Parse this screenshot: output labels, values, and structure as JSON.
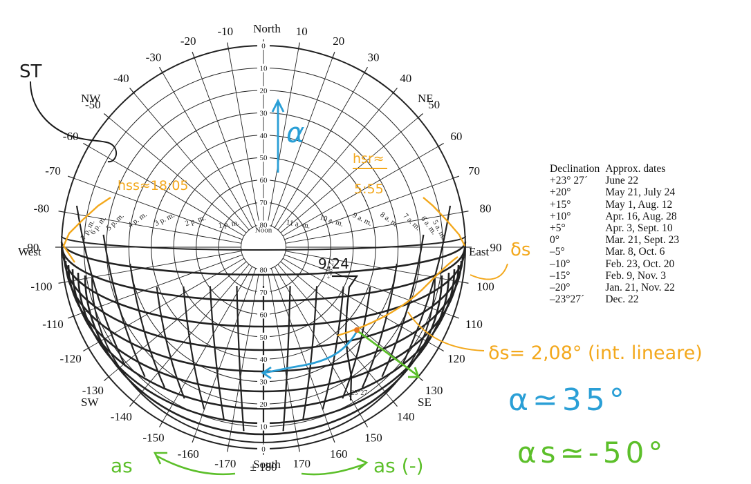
{
  "compass": {
    "north": "North",
    "south": "South",
    "east": "East",
    "west": "West",
    "ne": "NE",
    "nw": "NW",
    "se": "SE",
    "sw": "SW"
  },
  "azimuth_labels": [
    "170",
    "± 180",
    "-170",
    "160",
    "-160",
    "150",
    "-150",
    "140",
    "-140",
    "130",
    "-130",
    "120",
    "-120",
    "110",
    "-110",
    "100",
    "-100",
    "90",
    "-90",
    "80",
    "-80",
    "70",
    "-70",
    "60",
    "-60",
    "50",
    "-50",
    "40",
    "-40",
    "30",
    "-30",
    "20",
    "-20",
    "10",
    "-10"
  ],
  "altitude_labels_north": [
    "0",
    "10",
    "20",
    "30",
    "40",
    "50",
    "60",
    "70",
    "80"
  ],
  "altitude_labels_south": [
    "80",
    "70",
    "60",
    "50",
    "40",
    "30",
    "20",
    "10",
    "0"
  ],
  "hour_labels": [
    "7 p. m.",
    "6 p. m.",
    "5 p. m.",
    "4 p. m.",
    "3 p. m.",
    "2 p. m.",
    "1 p. m.",
    "Noon",
    "11 a. m.",
    "10 a. m.",
    "9 a. m.",
    "8 a. m.",
    "7 a. m.",
    "6 a. m.",
    "5 a. m."
  ],
  "declination_table": {
    "headers": [
      "Declination",
      "Approx. dates"
    ],
    "rows": [
      [
        "+23° 27´",
        "June 22"
      ],
      [
        "+20°",
        "May 21, July 24"
      ],
      [
        "+15°",
        "May 1, Aug. 12"
      ],
      [
        "+10°",
        "Apr. 16, Aug. 28"
      ],
      [
        "+5°",
        "Apr. 3, Sept. 10"
      ],
      [
        "0°",
        "Mar. 21, Sept. 23"
      ],
      [
        "–5°",
        "Mar. 8, Oct. 6"
      ],
      [
        "–10°",
        "Feb. 23, Oct. 20"
      ],
      [
        "–15°",
        "Feb. 9, Nov. 3"
      ],
      [
        "–20°",
        "Jan. 21, Nov. 22"
      ],
      [
        "–23°27´",
        "Dec. 22"
      ]
    ]
  },
  "curve_labels": [
    "+23°27",
    "-23°27"
  ],
  "annotations": {
    "st": "ST",
    "time_mark": "9:24",
    "alpha_arrow": "α",
    "hss": "hss≈18:05",
    "hsr_1": "hsr≈",
    "hsr_2": "5:55",
    "delta_label": "δs",
    "delta_value": "δs= 2,08°  (int. lineare)",
    "alpha_value": "α≃35°",
    "as_value": "αs≃-50°",
    "as_left": "as",
    "as_right": "as (-)"
  },
  "colors": {
    "chart_lines": "#222222",
    "orange": "#f3a81c",
    "blue": "#2a9fd6",
    "green": "#5cbf2a",
    "black_ink": "#1a1a1a"
  }
}
